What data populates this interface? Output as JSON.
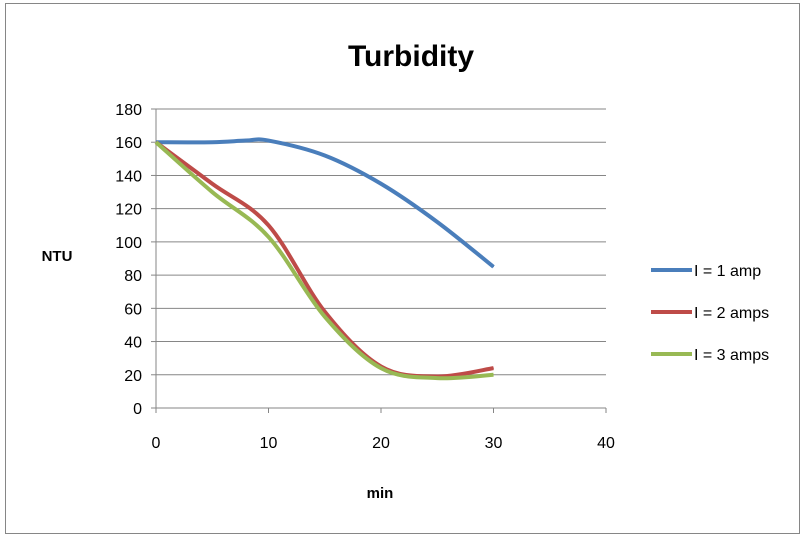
{
  "chart_data": {
    "type": "line",
    "title": "Turbidity",
    "xlabel": "min",
    "ylabel": "NTU",
    "xlim": [
      0,
      40
    ],
    "ylim": [
      0,
      180
    ],
    "xticks": [
      0,
      10,
      20,
      30,
      40
    ],
    "yticks": [
      0,
      20,
      40,
      60,
      80,
      100,
      120,
      140,
      160,
      180
    ],
    "grid": "horizontal",
    "legend_position": "right",
    "smoothed": true,
    "series": [
      {
        "name": "I = 1 amp",
        "color": "#4A7EBB",
        "x": [
          0,
          5,
          8,
          10,
          15,
          20,
          25,
          30
        ],
        "y": [
          160,
          160,
          161,
          161,
          152,
          135,
          112,
          85
        ]
      },
      {
        "name": "I = 2 amps",
        "color": "#BE4B48",
        "x": [
          0,
          5,
          10,
          15,
          20,
          25,
          30
        ],
        "y": [
          160,
          135,
          110,
          58,
          25,
          19,
          24
        ]
      },
      {
        "name": "I = 3 amps",
        "color": "#98B954",
        "x": [
          0,
          5,
          10,
          15,
          20,
          25,
          30
        ],
        "y": [
          160,
          130,
          103,
          55,
          24,
          18,
          20
        ]
      }
    ]
  }
}
